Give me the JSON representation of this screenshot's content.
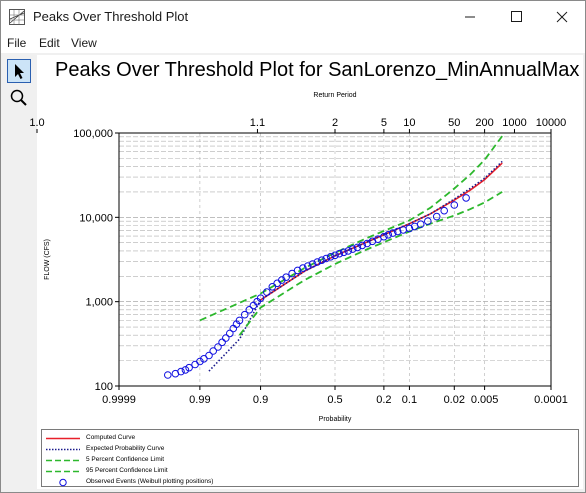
{
  "window": {
    "title": "Peaks Over Threshold Plot"
  },
  "menu": {
    "file": "File",
    "edit": "Edit",
    "view": "View"
  },
  "toolbar": {
    "pointer_icon": "pointer-arrow-icon",
    "zoom_icon": "magnifier-icon"
  },
  "colors": {
    "computed": "#e8202a",
    "expected": "#1a1a8c",
    "confidence": "#2db82d",
    "observed": "#1010e0",
    "grid": "#b0b0b0"
  },
  "chart_data": {
    "type": "scatter",
    "title": "Peaks Over Threshold Plot for SanLorenzo_MinAnnualMax",
    "top_axis_label": "Return Period",
    "top_ticks": [
      "1.0",
      "1.1",
      "2",
      "5",
      "10",
      "50",
      "200",
      "1000",
      "10000"
    ],
    "top_tick_values": [
      1.0,
      1.1,
      2,
      5,
      10,
      50,
      200,
      1000,
      10000
    ],
    "ylabel": "FLOW (CFS)",
    "xlabel": "Probability",
    "y_scale": "log",
    "ylim": [
      100,
      100000
    ],
    "y_ticks": [
      "100,000",
      "10,000",
      "1,000",
      "100"
    ],
    "y_tick_values": [
      100000,
      10000,
      1000,
      100
    ],
    "x_scale": "normal-probability",
    "xlim": [
      0.9999,
      0.0001
    ],
    "x_ticks": [
      "0.9999",
      "0.99",
      "0.9",
      "0.5",
      "0.2",
      "0.1",
      "0.02",
      "0.005",
      "0.0001"
    ],
    "x_tick_values": [
      0.9999,
      0.99,
      0.9,
      0.5,
      0.2,
      0.1,
      0.02,
      0.005,
      0.0001
    ],
    "grid": true,
    "series": [
      {
        "name": "Computed Curve",
        "style": "solid",
        "x": [
          0.9,
          0.7,
          0.5,
          0.3,
          0.2,
          0.1,
          0.05,
          0.02,
          0.01,
          0.005,
          0.002
        ],
        "y": [
          1050,
          2300,
          3500,
          5000,
          6200,
          8400,
          11000,
          16000,
          21000,
          28000,
          44000
        ]
      },
      {
        "name": "Expected Probability Curve",
        "style": "dotted",
        "x": [
          0.985,
          0.95,
          0.9,
          0.7,
          0.5,
          0.3,
          0.1,
          0.05,
          0.02,
          0.01,
          0.005,
          0.002
        ],
        "y": [
          150,
          360,
          1050,
          2300,
          3500,
          5000,
          8400,
          11000,
          16500,
          22000,
          29000,
          46000
        ]
      },
      {
        "name": "5 Percent Confidence Limit",
        "style": "dashed",
        "x": [
          0.99,
          0.9,
          0.7,
          0.5,
          0.3,
          0.1,
          0.05,
          0.02,
          0.01,
          0.005,
          0.002
        ],
        "y": [
          600,
          1250,
          2500,
          3800,
          5600,
          9200,
          13000,
          22000,
          32000,
          48000,
          92000
        ]
      },
      {
        "name": "95 Percent Confidence Limit",
        "style": "dashed",
        "x": [
          0.95,
          0.9,
          0.7,
          0.5,
          0.3,
          0.1,
          0.05,
          0.02,
          0.01,
          0.005,
          0.002
        ],
        "y": [
          400,
          850,
          1800,
          2800,
          4100,
          6800,
          8400,
          10500,
          12500,
          15000,
          20000
        ]
      }
    ],
    "observed": {
      "name": "Observed Events (Weibull plotting positions)",
      "x": [
        0.998,
        0.997,
        0.996,
        0.995,
        0.994,
        0.992,
        0.99,
        0.988,
        0.985,
        0.982,
        0.978,
        0.974,
        0.97,
        0.965,
        0.96,
        0.955,
        0.95,
        0.94,
        0.93,
        0.92,
        0.91,
        0.9,
        0.88,
        0.86,
        0.84,
        0.82,
        0.8,
        0.77,
        0.74,
        0.71,
        0.68,
        0.65,
        0.62,
        0.59,
        0.56,
        0.53,
        0.5,
        0.47,
        0.44,
        0.41,
        0.38,
        0.35,
        0.32,
        0.29,
        0.26,
        0.23,
        0.2,
        0.18,
        0.16,
        0.14,
        0.12,
        0.1,
        0.085,
        0.07,
        0.055,
        0.04,
        0.03,
        0.02,
        0.012
      ],
      "y": [
        135,
        140,
        148,
        155,
        165,
        180,
        195,
        210,
        230,
        260,
        290,
        330,
        370,
        420,
        480,
        540,
        600,
        700,
        800,
        900,
        1000,
        1100,
        1300,
        1500,
        1650,
        1800,
        1950,
        2150,
        2350,
        2500,
        2650,
        2800,
        2950,
        3100,
        3250,
        3400,
        3550,
        3700,
        3850,
        4000,
        4200,
        4400,
        4650,
        4900,
        5200,
        5500,
        5900,
        6200,
        6500,
        6800,
        7100,
        7400,
        7800,
        8300,
        9000,
        10200,
        12000,
        14000,
        17000
      ]
    }
  },
  "legend": {
    "computed": "Computed Curve",
    "expected": "Expected Probability Curve",
    "ci5": "5 Percent Confidence Limit",
    "ci95": "95 Percent Confidence Limit",
    "observed": "Observed Events (Weibull plotting positions)"
  }
}
